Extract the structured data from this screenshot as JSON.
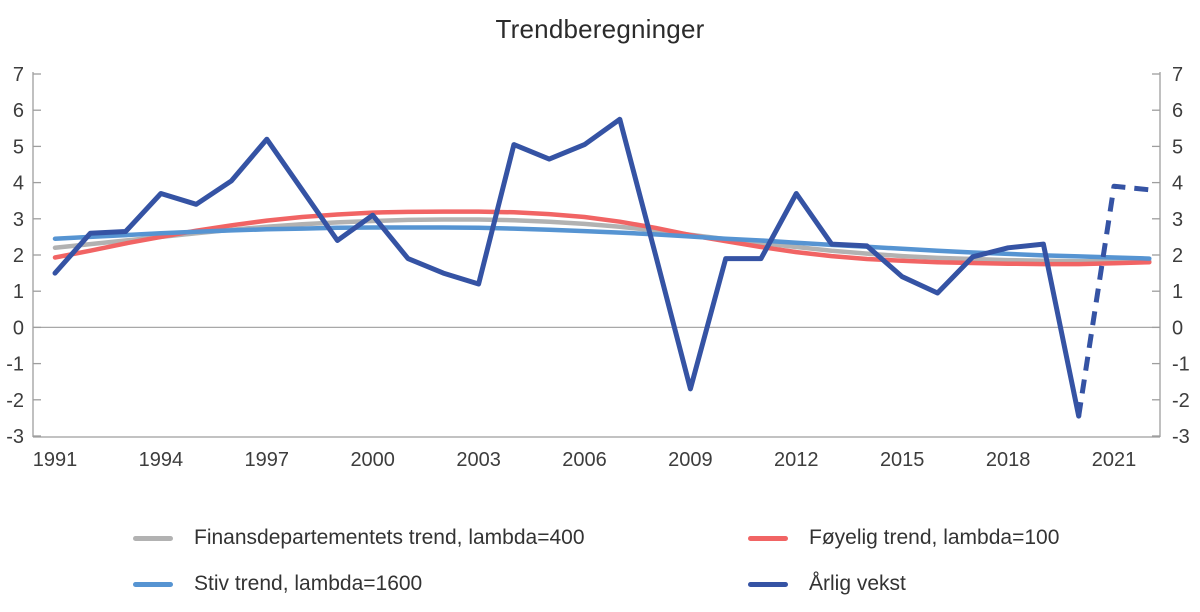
{
  "title": "Trendberegninger",
  "axes": {
    "y_ticks": [
      7,
      6,
      5,
      4,
      3,
      2,
      1,
      0,
      -1,
      -2,
      -3
    ],
    "x_ticks": [
      1991,
      1994,
      1997,
      2000,
      2003,
      2006,
      2009,
      2012,
      2015,
      2018,
      2021
    ],
    "y_min": -3,
    "y_max": 7
  },
  "colors": {
    "axis": "#9e9e9e",
    "zero_line": "#a8a8a8",
    "gray_series": "#B2B2B2",
    "red_series": "#F16464",
    "lightblue_series": "#5694D2",
    "darkblue_series": "#3553A4"
  },
  "chart_data": {
    "type": "line",
    "title": "Trendberegninger",
    "xlabel": "",
    "ylabel": "",
    "ylim": [
      -3,
      7
    ],
    "x_range": [
      1991,
      2022
    ],
    "grid": "zero-line-only",
    "legend_position": "bottom",
    "x": [
      1991,
      1992,
      1993,
      1994,
      1995,
      1996,
      1997,
      1998,
      1999,
      2000,
      2001,
      2002,
      2003,
      2004,
      2005,
      2006,
      2007,
      2008,
      2009,
      2010,
      2011,
      2012,
      2013,
      2014,
      2015,
      2016,
      2017,
      2018,
      2019,
      2020,
      2021,
      2022
    ],
    "series": [
      {
        "name": "Finansdepartementets trend, lambda=400",
        "color": "#B2B2B2",
        "width": 4.5,
        "style": "solid",
        "values": [
          2.2,
          2.3,
          2.4,
          2.5,
          2.6,
          2.7,
          2.78,
          2.85,
          2.9,
          2.94,
          2.97,
          2.98,
          2.98,
          2.96,
          2.92,
          2.86,
          2.78,
          2.68,
          2.56,
          2.44,
          2.33,
          2.22,
          2.12,
          2.04,
          1.97,
          1.92,
          1.89,
          1.86,
          1.84,
          1.83,
          1.83,
          1.83
        ]
      },
      {
        "name": "Føyelig trend, lambda=100",
        "color": "#F16464",
        "width": 4.5,
        "style": "solid",
        "values": [
          1.93,
          2.12,
          2.32,
          2.5,
          2.67,
          2.82,
          2.95,
          3.05,
          3.12,
          3.17,
          3.19,
          3.2,
          3.2,
          3.18,
          3.13,
          3.05,
          2.92,
          2.75,
          2.55,
          2.38,
          2.22,
          2.08,
          1.97,
          1.89,
          1.84,
          1.8,
          1.78,
          1.76,
          1.75,
          1.75,
          1.77,
          1.8
        ]
      },
      {
        "name": "Stiv trend, lambda=1600",
        "color": "#5694D2",
        "width": 4.5,
        "style": "solid",
        "values": [
          2.45,
          2.5,
          2.55,
          2.6,
          2.64,
          2.68,
          2.71,
          2.73,
          2.75,
          2.76,
          2.76,
          2.76,
          2.75,
          2.73,
          2.7,
          2.66,
          2.62,
          2.57,
          2.51,
          2.45,
          2.4,
          2.34,
          2.28,
          2.23,
          2.17,
          2.12,
          2.07,
          2.03,
          1.99,
          1.96,
          1.93,
          1.9
        ]
      },
      {
        "name": "Årlig vekst",
        "color": "#3553A4",
        "width": 5,
        "style": "solid-then-dashed",
        "dashed_from_index": 29,
        "values": [
          1.5,
          2.6,
          2.65,
          3.7,
          3.4,
          4.05,
          5.2,
          3.8,
          2.4,
          3.1,
          1.9,
          1.5,
          1.2,
          5.05,
          4.65,
          5.05,
          5.75,
          2.05,
          -1.7,
          1.9,
          1.9,
          3.7,
          2.3,
          2.25,
          1.4,
          0.95,
          1.95,
          2.2,
          2.3,
          -2.45,
          3.9,
          3.8
        ]
      }
    ]
  },
  "legend": {
    "items": [
      {
        "label": "Finansdepartementets trend, lambda=400",
        "color": "#B2B2B2"
      },
      {
        "label": "Føyelig trend, lambda=100",
        "color": "#F16464"
      },
      {
        "label": "Stiv trend, lambda=1600",
        "color": "#5694D2"
      },
      {
        "label": "Årlig vekst",
        "color": "#3553A4"
      }
    ]
  }
}
